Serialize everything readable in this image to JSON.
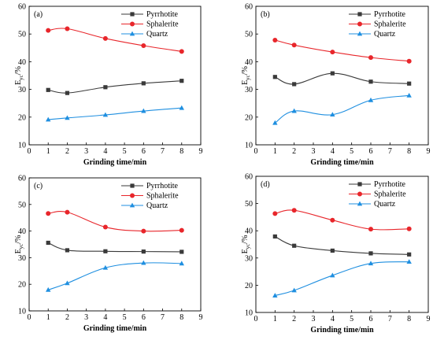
{
  "chart_data": [
    {
      "type": "line",
      "panel_label": "(a)",
      "x": [
        1,
        2,
        4,
        6,
        8
      ],
      "xlim": [
        0,
        9
      ],
      "ylim": [
        10,
        60
      ],
      "xticks": [
        0,
        1,
        2,
        3,
        4,
        5,
        6,
        7,
        8,
        9
      ],
      "yticks": [
        10,
        20,
        30,
        40,
        50,
        60
      ],
      "xlabel": "Grinding time/min",
      "ylabel": "E",
      "ylabel_sub": "yc",
      "ylabel_suffix": "/%",
      "legend_position": "top-right",
      "grid": false,
      "series": [
        {
          "name": "Pyrrhotite",
          "color": "#3a3a3a",
          "marker": "square",
          "values": [
            29.8,
            28.7,
            30.8,
            32.2,
            33.1
          ]
        },
        {
          "name": "Sphalerite",
          "color": "#e8262b",
          "marker": "circle",
          "values": [
            51.3,
            51.9,
            48.4,
            45.8,
            43.7
          ]
        },
        {
          "name": "Quartz",
          "color": "#1f8fe0",
          "marker": "triangle",
          "values": [
            19.1,
            19.7,
            20.8,
            22.2,
            23.3
          ]
        }
      ]
    },
    {
      "type": "line",
      "panel_label": "(b)",
      "x": [
        1,
        2,
        4,
        6,
        8
      ],
      "xlim": [
        0,
        9
      ],
      "ylim": [
        10,
        60
      ],
      "xticks": [
        0,
        1,
        2,
        3,
        4,
        5,
        6,
        7,
        8,
        9
      ],
      "yticks": [
        10,
        20,
        30,
        40,
        50,
        60
      ],
      "xlabel": "Grinding time/min",
      "ylabel": "E",
      "ylabel_sub": "yc",
      "ylabel_suffix": "/%",
      "legend_position": "top-right",
      "grid": false,
      "series": [
        {
          "name": "Pyrrhotite",
          "color": "#3a3a3a",
          "marker": "square",
          "values": [
            34.5,
            31.9,
            35.8,
            32.8,
            32.1
          ]
        },
        {
          "name": "Sphalerite",
          "color": "#e8262b",
          "marker": "circle",
          "values": [
            47.8,
            46.0,
            43.5,
            41.5,
            40.2
          ]
        },
        {
          "name": "Quartz",
          "color": "#1f8fe0",
          "marker": "triangle",
          "values": [
            17.9,
            22.2,
            20.9,
            26.1,
            27.8
          ]
        }
      ]
    },
    {
      "type": "line",
      "panel_label": "(c)",
      "x": [
        1,
        2,
        4,
        6,
        8
      ],
      "xlim": [
        0,
        9
      ],
      "ylim": [
        10,
        60
      ],
      "xticks": [
        0,
        1,
        2,
        3,
        4,
        5,
        6,
        7,
        8,
        9
      ],
      "yticks": [
        10,
        20,
        30,
        40,
        50,
        60
      ],
      "xlabel": "Grinding time/min",
      "ylabel": "E",
      "ylabel_sub": "yc",
      "ylabel_suffix": "/%",
      "legend_position": "top-right",
      "grid": false,
      "series": [
        {
          "name": "Pyrrhotite",
          "color": "#3a3a3a",
          "marker": "square",
          "values": [
            35.6,
            32.8,
            32.4,
            32.3,
            32.2
          ]
        },
        {
          "name": "Sphalerite",
          "color": "#e8262b",
          "marker": "circle",
          "values": [
            46.6,
            47.1,
            41.5,
            40.0,
            40.3
          ]
        },
        {
          "name": "Quartz",
          "color": "#1f8fe0",
          "marker": "triangle",
          "values": [
            17.9,
            20.4,
            26.2,
            28.0,
            27.8
          ]
        }
      ]
    },
    {
      "type": "line",
      "panel_label": "(d)",
      "x": [
        1,
        2,
        4,
        6,
        8
      ],
      "xlim": [
        0,
        9
      ],
      "ylim": [
        10,
        60
      ],
      "xticks": [
        0,
        1,
        2,
        3,
        4,
        5,
        6,
        7,
        8,
        9
      ],
      "yticks": [
        10,
        20,
        30,
        40,
        50,
        60
      ],
      "xlabel": "Grinding time/min",
      "ylabel": "E",
      "ylabel_sub": "yc",
      "ylabel_suffix": "/%",
      "legend_position": "top-right",
      "grid": false,
      "series": [
        {
          "name": "Pyrrhotite",
          "color": "#3a3a3a",
          "marker": "square",
          "values": [
            37.9,
            34.5,
            32.7,
            31.7,
            31.3
          ]
        },
        {
          "name": "Sphalerite",
          "color": "#e8262b",
          "marker": "circle",
          "values": [
            46.3,
            47.5,
            43.9,
            40.6,
            40.7
          ]
        },
        {
          "name": "Quartz",
          "color": "#1f8fe0",
          "marker": "triangle",
          "values": [
            16.2,
            18.1,
            23.6,
            28.0,
            28.6
          ]
        }
      ]
    }
  ]
}
